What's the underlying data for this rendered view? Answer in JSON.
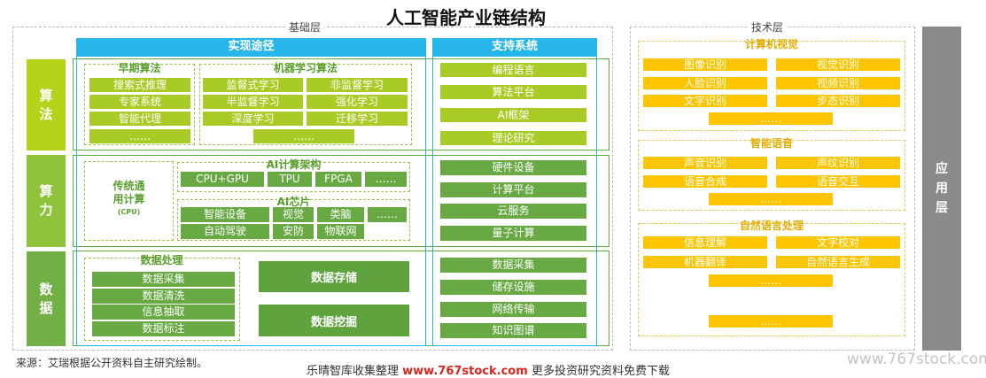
{
  "title": "人工智能产业链结构",
  "basic_layer": {
    "label": "基础层",
    "implementation_header": "实现途径",
    "support_header": "支持系统",
    "rows": {
      "algorithm": {
        "side_label": "算\n法",
        "early": {
          "title": "早期算法",
          "items": [
            "搜索式推理",
            "专家系统",
            "智能代理",
            "……"
          ]
        },
        "ml": {
          "title": "机器学习算法",
          "items": [
            "监督式学习",
            "非监督学习",
            "半监督学习",
            "强化学习",
            "深度学习",
            "迁移学习",
            "……"
          ]
        },
        "support": [
          "编程语言",
          "算法平台",
          "AI框架",
          "理论研究"
        ]
      },
      "compute": {
        "side_label": "算\n力",
        "general": {
          "title": "传统通\n用计算",
          "sub": "(CPU)"
        },
        "arch": {
          "title": "AI计算架构",
          "items": [
            "CPU+GPU",
            "TPU",
            "FPGA",
            "……"
          ]
        },
        "chip": {
          "title": "AI芯片",
          "items": [
            "智能设备",
            "视觉",
            "类脑",
            "……",
            "自动驾驶",
            "安防",
            "物联网"
          ]
        },
        "support": [
          "硬件设备",
          "计算平台",
          "云服务",
          "量子计算"
        ]
      },
      "data": {
        "side_label": "数\n据",
        "processing": {
          "title": "数据处理",
          "items": [
            "数据采集",
            "数据清洗",
            "信息抽取",
            "数据标注"
          ]
        },
        "storage": "数据存储",
        "mining": "数据挖掘",
        "support": [
          "数据采集",
          "储存设施",
          "网络传输",
          "知识图谱"
        ]
      }
    }
  },
  "tech_layer": {
    "label": "技术层",
    "vision": {
      "title": "计算机视觉",
      "items": [
        "图像识别",
        "视觉识别",
        "人脸识别",
        "视频识别",
        "文字识别",
        "步态识别",
        "……"
      ]
    },
    "speech": {
      "title": "智能语音",
      "items": [
        "声音识别",
        "声纹识别",
        "语音合成",
        "语音交互",
        "……"
      ]
    },
    "nlp": {
      "title": "自然语言处理",
      "items": [
        "信息理解",
        "文字校对",
        "机器翻译",
        "自然语言生成",
        "……",
        "……"
      ]
    }
  },
  "app_layer": {
    "label": "应\n用\n层"
  },
  "footer": {
    "source": "来源：艾瑞根据公开资料自主研究绘制。",
    "collect_prefix": "乐晴智库收集整理",
    "collect_url": "www.767stock.com",
    "collect_suffix": "更多投资研究资料免费下载",
    "watermark": "www.767stock.com"
  },
  "colors": {
    "blue_header": "#26b6ea",
    "lime": "#a8cc25",
    "green": "#68a944",
    "yellow": "#fdc500",
    "gray": "#8a8a8a"
  }
}
